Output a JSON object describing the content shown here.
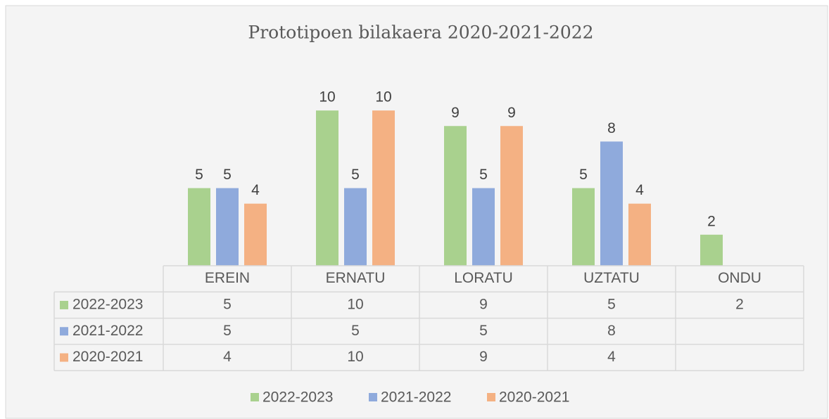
{
  "chart_data": {
    "type": "bar",
    "title": "Prototipoen bilakaera 2020-2021-2022",
    "categories": [
      "EREIN",
      "ERNATU",
      "LORATU",
      "UZTATU",
      "ONDU"
    ],
    "series": [
      {
        "name": "2022-2023",
        "color": "#a9d18e",
        "values": [
          5,
          10,
          9,
          5,
          2
        ]
      },
      {
        "name": "2021-2022",
        "color": "#8faadc",
        "values": [
          5,
          5,
          5,
          8,
          null
        ]
      },
      {
        "name": "2020-2021",
        "color": "#f4b183",
        "values": [
          4,
          10,
          9,
          4,
          null
        ]
      }
    ],
    "ylim": [
      0,
      12
    ],
    "legend": "bottom",
    "data_table": true
  }
}
